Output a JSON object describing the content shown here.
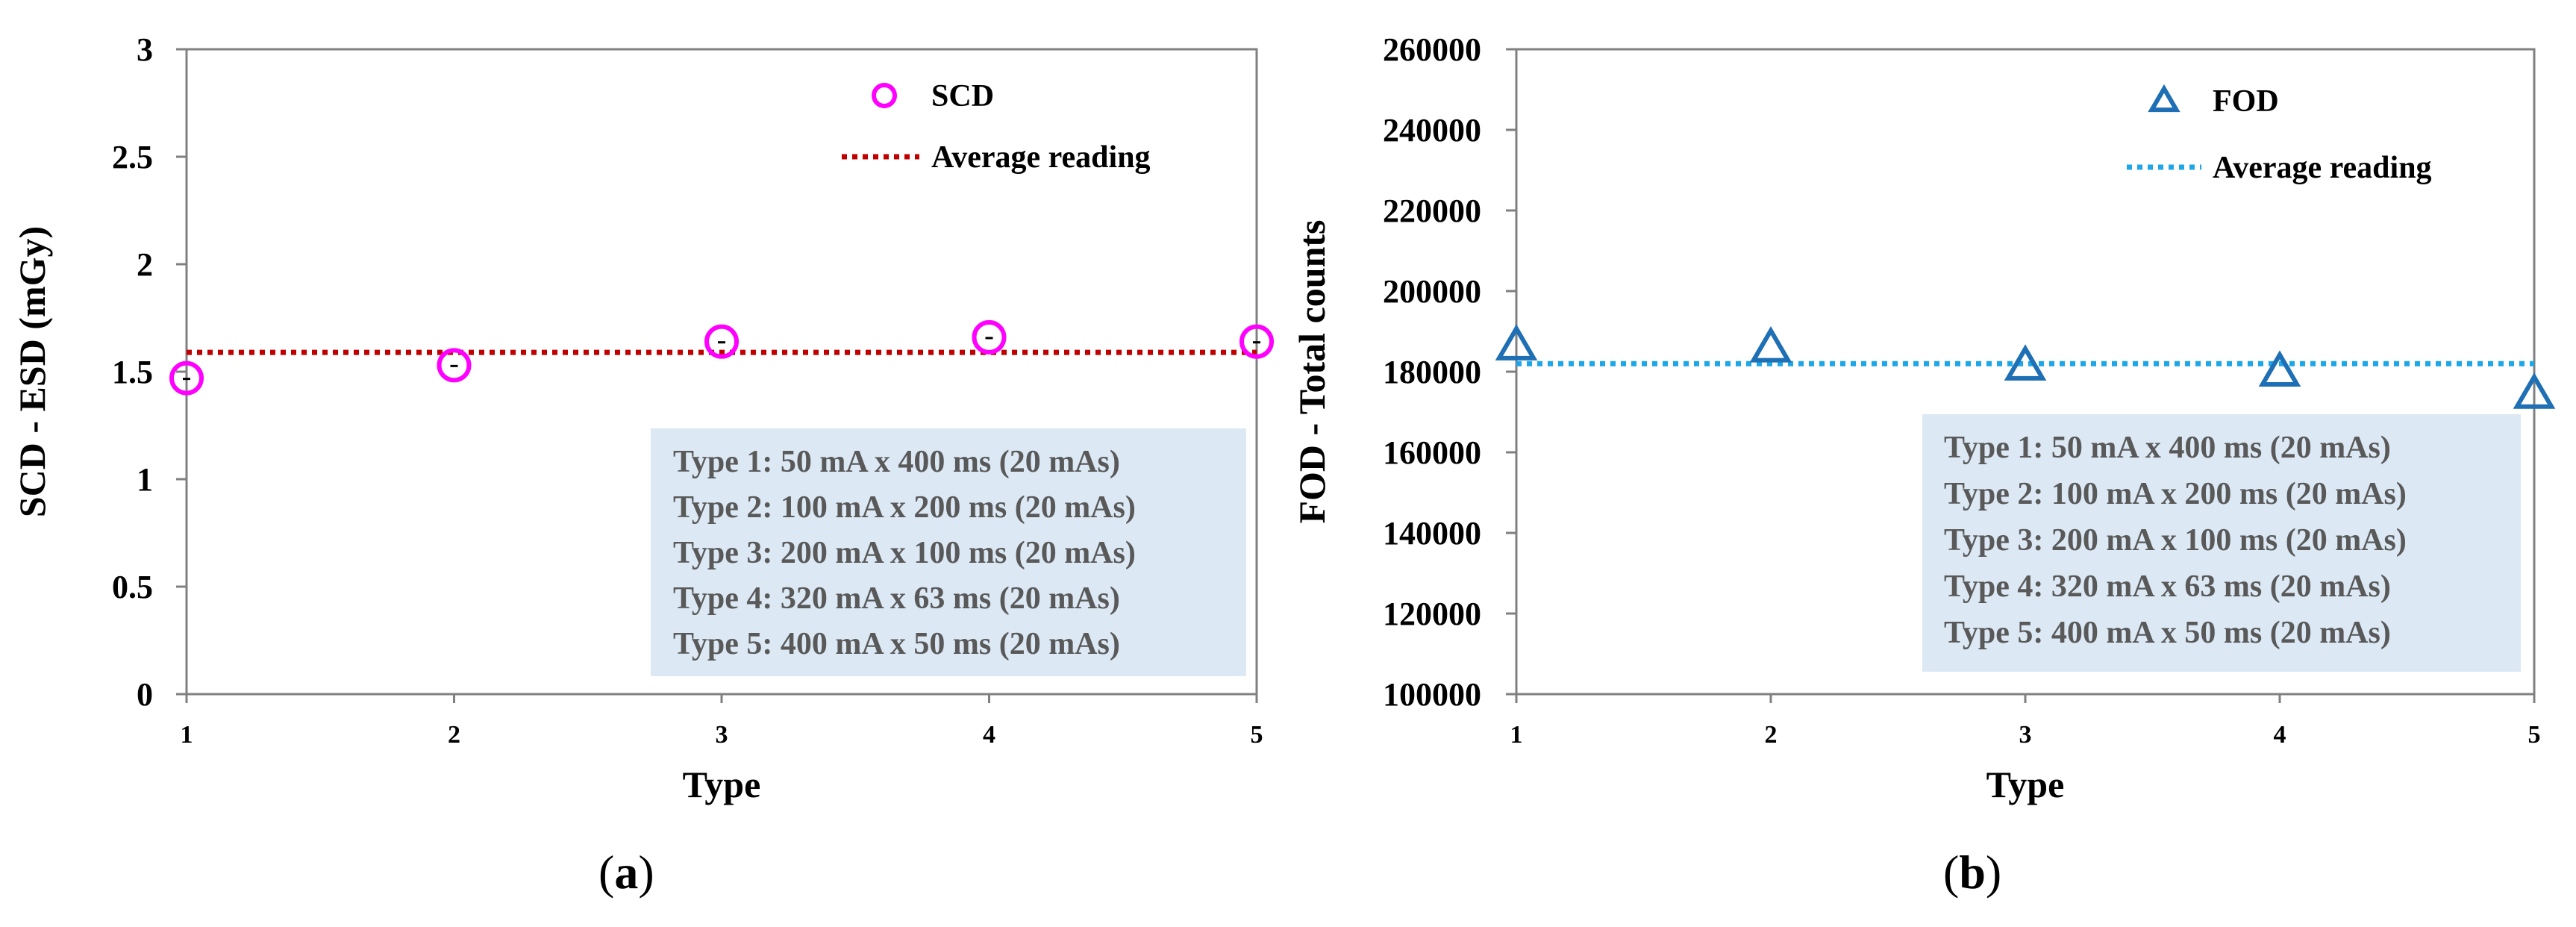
{
  "chart_data": [
    {
      "type": "scatter",
      "panel_label": "a",
      "xlabel": "Type",
      "ylabel": "SCD - ESD (mGy)",
      "x": [
        1,
        2,
        3,
        4,
        5
      ],
      "xlim": [
        1,
        5
      ],
      "ylim": [
        0,
        3
      ],
      "yticks": [
        0,
        0.5,
        1,
        1.5,
        2,
        2.5,
        3
      ],
      "ytick_labels": [
        "0",
        "0.5",
        "1",
        "1.5",
        "2",
        "2.5",
        "3"
      ],
      "xtick_labels": [
        "1",
        "2",
        "3",
        "4",
        "5"
      ],
      "grid": false,
      "series": [
        {
          "name": "SCD",
          "marker": "circle",
          "values": [
            1.47,
            1.53,
            1.64,
            1.66,
            1.64
          ],
          "color": "#ff00ff"
        }
      ],
      "average_line": {
        "name": "Average reading",
        "value": 1.59,
        "color": "#c00000"
      },
      "legend_position": "top-right",
      "annotation_lines": [
        "Type 1: 50 mA x 400 ms (20 mAs)",
        "Type 2: 100 mA x 200 ms (20 mAs)",
        "Type 3: 200 mA x 100 ms (20 mAs)",
        "Type 4: 320 mA x 63 ms (20 mAs)",
        "Type 5: 400 mA x 50 ms (20 mAs)"
      ]
    },
    {
      "type": "scatter",
      "panel_label": "b",
      "xlabel": "Type",
      "ylabel": "FOD - Total counts",
      "x": [
        1,
        2,
        3,
        4,
        5
      ],
      "xlim": [
        1,
        5
      ],
      "ylim": [
        100000,
        260000
      ],
      "yticks": [
        100000,
        120000,
        140000,
        160000,
        180000,
        200000,
        220000,
        240000,
        260000
      ],
      "ytick_labels": [
        "100000",
        "120000",
        "140000",
        "160000",
        "180000",
        "200000",
        "220000",
        "240000",
        "260000"
      ],
      "xtick_labels": [
        "1",
        "2",
        "3",
        "4",
        "5"
      ],
      "grid": false,
      "series": [
        {
          "name": "FOD",
          "marker": "triangle",
          "values": [
            186500,
            186000,
            181500,
            180000,
            174500
          ],
          "color": "#1f6fb5"
        }
      ],
      "average_line": {
        "name": "Average reading",
        "value": 182000,
        "color": "#1ea7e8"
      },
      "legend_position": "top-right",
      "annotation_lines": [
        "Type 1: 50 mA x 400 ms (20 mAs)",
        "Type 2: 100 mA x 200 ms (20 mAs)",
        "Type 3: 200 mA x 100 ms (20 mAs)",
        "Type 4: 320 mA x 63 ms (20 mAs)",
        "Type 5: 400 mA x 50 ms (20 mAs)"
      ]
    }
  ],
  "colors": {
    "annotation_bg": "#dce9f5",
    "annotation_text": "#595959",
    "axis": "#808080"
  }
}
